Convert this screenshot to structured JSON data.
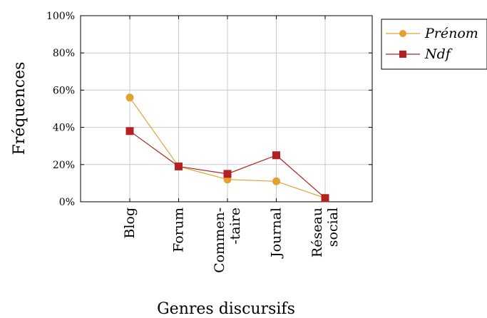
{
  "chart_data": {
    "type": "line",
    "xlabel": "Genres discursifs",
    "ylabel": "Fréquences",
    "categories": [
      {
        "lines": [
          "Blog"
        ]
      },
      {
        "lines": [
          "Forum"
        ]
      },
      {
        "lines": [
          "Commen-",
          "-taire"
        ]
      },
      {
        "lines": [
          "Journal"
        ]
      },
      {
        "lines": [
          "Réseau",
          "social"
        ]
      }
    ],
    "yticks": [
      "0%",
      "20%",
      "40%",
      "60%",
      "80%",
      "100%"
    ],
    "ylim": [
      0,
      100
    ],
    "grid": true,
    "legend_position": "top-right-outside",
    "series": [
      {
        "name": "Prénom",
        "marker": "circle",
        "color": "#E3A12F",
        "values": [
          56,
          19,
          12,
          11,
          2
        ]
      },
      {
        "name": "Ndf",
        "marker": "square",
        "color": "#B22222",
        "values": [
          38,
          19,
          15,
          25,
          2
        ]
      }
    ]
  }
}
